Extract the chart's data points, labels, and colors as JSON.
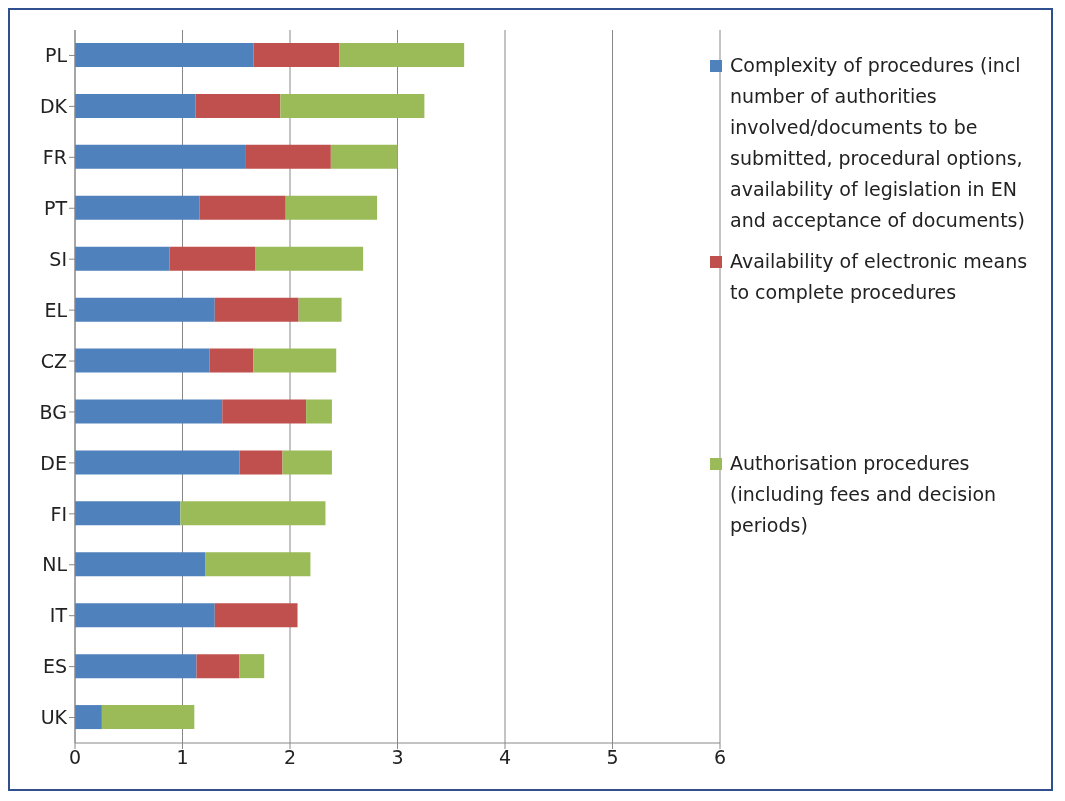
{
  "chart_data": {
    "type": "bar",
    "orientation": "horizontal",
    "stacked": true,
    "categories": [
      "PL",
      "DK",
      "FR",
      "PT",
      "SI",
      "EL",
      "CZ",
      "BG",
      "DE",
      "FI",
      "NL",
      "IT",
      "ES",
      "UK"
    ],
    "series": [
      {
        "name": "Complexity of procedures (incl number of authorities involved/documents to be submitted, procedural options, availability of legislation in EN and acceptance of documents)",
        "color": "#4f81bd",
        "values": [
          1.66,
          1.12,
          1.59,
          1.16,
          0.88,
          1.3,
          1.25,
          1.37,
          1.53,
          0.98,
          1.21,
          1.3,
          1.13,
          0.25
        ]
      },
      {
        "name": "Availability of electronic means to complete procedures",
        "color": "#c0504d",
        "values": [
          0.8,
          0.79,
          0.79,
          0.8,
          0.8,
          0.78,
          0.41,
          0.78,
          0.4,
          0,
          0,
          0.77,
          0.4,
          0
        ]
      },
      {
        "name": "Authorisation procedures (including fees and decision periods)",
        "color": "#9bbb59",
        "values": [
          1.16,
          1.34,
          0.62,
          0.85,
          1.0,
          0.4,
          0.77,
          0.24,
          0.46,
          1.35,
          0.98,
          0,
          0.23,
          0.86
        ]
      }
    ],
    "xlim": [
      0,
      6
    ],
    "xticks": [
      0,
      1,
      2,
      3,
      4,
      5,
      6
    ],
    "grid": "x",
    "legend": "right"
  }
}
